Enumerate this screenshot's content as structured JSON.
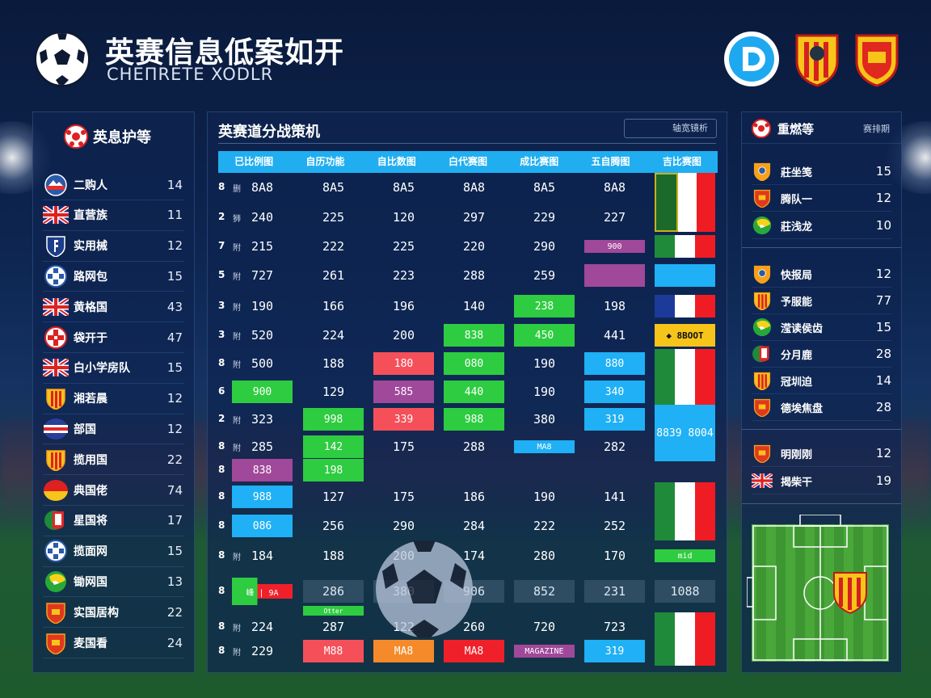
{
  "header": {
    "title": "英赛信息低案如开",
    "subtitle": "CHEΠRETE XODLR",
    "top_logos": [
      "d-logo-icon",
      "shield-crest-icon",
      "shield-crest-icon"
    ]
  },
  "colors": {
    "green": "#2ecc40",
    "red": "#f5505a",
    "purple": "#a0489a",
    "blue": "#1fb0f5",
    "orange": "#f58a2a",
    "scarlet": "#f0202a",
    "yellow": "#f7c41a",
    "header_blue": "#21aef0"
  },
  "left": {
    "title": "英息护等",
    "items": [
      {
        "name": "二购人",
        "value": "14",
        "icon": "mountain-badge"
      },
      {
        "name": "直营族",
        "value": "11",
        "icon": "uk-flag"
      },
      {
        "name": "实用械",
        "value": "12",
        "icon": "shield-blue"
      },
      {
        "name": "路网包",
        "value": "15",
        "icon": "ball-blue"
      },
      {
        "name": "黄格国",
        "value": "43",
        "icon": "uk-flag"
      },
      {
        "name": "袋开于",
        "value": "47",
        "icon": "ball-red"
      },
      {
        "name": "白小学房队",
        "value": "15",
        "icon": "uk-flag"
      },
      {
        "name": "湘若晨",
        "value": "12",
        "icon": "shield-stripes"
      },
      {
        "name": "部国",
        "value": "12",
        "icon": "stripes-circle"
      },
      {
        "name": "揽用国",
        "value": "22",
        "icon": "shield-stripes"
      },
      {
        "name": "典国佬",
        "value": "74",
        "icon": "germany-circle"
      },
      {
        "name": "星国将",
        "value": "17",
        "icon": "mexico-badge"
      },
      {
        "name": "揽面网",
        "value": "15",
        "icon": "ball-blue"
      },
      {
        "name": "锄网国",
        "value": "13",
        "icon": "green-circle"
      },
      {
        "name": "实国居构",
        "value": "22",
        "icon": "shield-red"
      },
      {
        "name": "麦国看",
        "value": "24",
        "icon": "shield-red"
      }
    ]
  },
  "center": {
    "title": "英赛道分战策机",
    "button": "轴宽镜析",
    "columns": [
      "已比例图",
      "自历功能",
      "自比数图",
      "白代赛图",
      "成比赛图",
      "五自腾图",
      "吉比赛图"
    ],
    "rows": [
      {
        "idx": "8",
        "sub": "删",
        "cells": [
          {
            "v": "8A8"
          },
          {
            "v": "8A5"
          },
          {
            "v": "8A5"
          },
          {
            "v": "8A8"
          },
          {
            "v": "8A5"
          },
          {
            "v": "8A8"
          },
          {
            "flag": "it",
            "badge": true,
            "span": 2
          }
        ]
      },
      {
        "idx": "2",
        "sub": "狮",
        "cells": [
          {
            "v": "240"
          },
          {
            "v": "225"
          },
          {
            "v": "120"
          },
          {
            "v": "297"
          },
          {
            "v": "229"
          },
          {
            "v": "227"
          },
          null
        ]
      },
      {
        "idx": "7",
        "sub": "附",
        "cells": [
          {
            "v": "215"
          },
          {
            "v": "222"
          },
          {
            "v": "225"
          },
          {
            "v": "220"
          },
          {
            "v": "290"
          },
          {
            "v": "900",
            "bg": "purple",
            "small": true
          },
          {
            "flag": "it"
          }
        ]
      },
      {
        "idx": "5",
        "sub": "附",
        "cells": [
          {
            "v": "727"
          },
          {
            "v": "261"
          },
          {
            "v": "223"
          },
          {
            "v": "288"
          },
          {
            "v": "259"
          },
          {
            "v": "",
            "bg": "purple"
          },
          {
            "v": "",
            "bg": "blue"
          }
        ]
      },
      {
        "idx": "3",
        "sub": "附",
        "cells": [
          {
            "v": "190"
          },
          {
            "v": "166"
          },
          {
            "v": "196"
          },
          {
            "v": "140"
          },
          {
            "v": "238",
            "bg": "green"
          },
          {
            "v": "198"
          },
          {
            "flag": "fr"
          }
        ]
      },
      {
        "idx": "3",
        "sub": "附",
        "cells": [
          {
            "v": "520"
          },
          {
            "v": "224"
          },
          {
            "v": "200"
          },
          {
            "v": "838",
            "bg": "green"
          },
          {
            "v": "450",
            "bg": "green"
          },
          {
            "v": "441"
          },
          {
            "v": "◆ 8BOOT",
            "bg": "yellow",
            "dark": true
          }
        ]
      },
      {
        "idx": "8",
        "sub": "附",
        "cells": [
          {
            "v": "500"
          },
          {
            "v": "188"
          },
          {
            "v": "180",
            "bg": "red"
          },
          {
            "v": "080",
            "bg": "green"
          },
          {
            "v": "190"
          },
          {
            "v": "880",
            "bg": "blue"
          },
          {
            "flag": "it",
            "span": 2
          }
        ]
      },
      {
        "idx": "6",
        "sub": "",
        "cells": [
          {
            "v": "900",
            "bg": "green"
          },
          {
            "v": "129"
          },
          {
            "v": "585",
            "bg": "purple"
          },
          {
            "v": "440",
            "bg": "green"
          },
          {
            "v": "190"
          },
          {
            "v": "340",
            "bg": "blue"
          },
          null
        ]
      },
      {
        "idx": "2",
        "sub": "附",
        "cells": [
          {
            "v": "323"
          },
          {
            "v": "998",
            "bg": "green"
          },
          {
            "v": "339",
            "bg": "red"
          },
          {
            "v": "988",
            "bg": "green"
          },
          {
            "v": "380"
          },
          {
            "v": "319",
            "bg": "blue"
          },
          {
            "v": "8839 8004",
            "bg": "blue",
            "span": 2
          }
        ]
      },
      {
        "idx": "8",
        "sub": "附",
        "cells": [
          {
            "v": "285"
          },
          {
            "v": "142",
            "bg": "green"
          },
          {
            "v": "175"
          },
          {
            "v": "288"
          },
          {
            "v": "MA8",
            "bg": "blue",
            "small": true
          },
          {
            "v": "282"
          },
          null
        ]
      },
      {
        "idx": "8",
        "sub": "",
        "cells": [
          {
            "v": "838",
            "bg": "purple"
          },
          {
            "v": "198",
            "bg": "green"
          },
          {
            "v": ""
          },
          {
            "v": ""
          },
          {
            "v": ""
          },
          {
            "v": ""
          },
          {
            "v": ""
          }
        ]
      },
      {
        "idx": "8",
        "sub": "",
        "cells": [
          {
            "v": "988",
            "bg": "blue"
          },
          {
            "v": "127"
          },
          {
            "v": "175"
          },
          {
            "v": "186"
          },
          {
            "v": "190"
          },
          {
            "v": "141"
          },
          {
            "flag": "it",
            "span": 2
          }
        ]
      },
      {
        "idx": "8",
        "sub": "",
        "cells": [
          {
            "v": "086",
            "bg": "blue"
          },
          {
            "v": "256"
          },
          {
            "v": "290"
          },
          {
            "v": "284"
          },
          {
            "v": "222"
          },
          {
            "v": "252"
          },
          null
        ]
      },
      {
        "idx": "8",
        "sub": "附",
        "cells": [
          {
            "v": "184"
          },
          {
            "v": "188"
          },
          {
            "v": "200"
          },
          {
            "v": "174"
          },
          {
            "v": "280"
          },
          {
            "v": "170"
          },
          {
            "v": "mid",
            "bg": "green",
            "small": true
          }
        ]
      },
      {
        "idx": "8",
        "sub": "",
        "cells": [
          {
            "v": "峰 | 9A",
            "bg": "split"
          },
          {
            "v": "286",
            "bg": "glass"
          },
          {
            "v": "380",
            "bg": "glass"
          },
          {
            "v": "906",
            "bg": "glass"
          },
          {
            "v": "852",
            "bg": "glass"
          },
          {
            "v": "231",
            "bg": "glass"
          },
          {
            "v": "1088",
            "bg": "glass"
          }
        ]
      },
      {
        "idx": "8",
        "sub": "附",
        "cells": [
          {
            "v": "224"
          },
          {
            "v": "287",
            "tag": "Otter"
          },
          {
            "v": "122"
          },
          {
            "v": "260"
          },
          {
            "v": "720"
          },
          {
            "v": "723"
          },
          {
            "flag": "it",
            "span": 2
          }
        ]
      },
      {
        "idx": "8",
        "sub": "附",
        "cells": [
          {
            "v": "229"
          },
          {
            "v": "M88",
            "bg": "red"
          },
          {
            "v": "MA8",
            "bg": "orange"
          },
          {
            "v": "MA8",
            "bg": "scarlet"
          },
          {
            "v": "MAGAZINE",
            "bg": "purple",
            "small": true
          },
          {
            "v": "319",
            "bg": "blue"
          },
          null
        ]
      }
    ]
  },
  "right": {
    "title": "重燃等",
    "link": "赛排期",
    "groups": [
      [
        {
          "name": "莊坐笺",
          "value": "15",
          "icon": "shield-orange"
        },
        {
          "name": "腾队一",
          "value": "12",
          "icon": "shield-red"
        },
        {
          "name": "莊浅龙",
          "value": "10",
          "icon": "green-circle"
        }
      ],
      [
        {
          "name": "快报局",
          "value": "12",
          "icon": "shield-orange"
        },
        {
          "name": "予服能",
          "value": "77",
          "icon": "shield-stripes"
        },
        {
          "name": "滢读侯齿",
          "value": "15",
          "icon": "green-circle"
        },
        {
          "name": "分月鹿",
          "value": "28",
          "icon": "mexico-badge"
        },
        {
          "name": "冠圳迫",
          "value": "14",
          "icon": "shield-stripes"
        },
        {
          "name": "德埃焦盘",
          "value": "28",
          "icon": "shield-red"
        }
      ],
      [
        {
          "name": "明刚刚",
          "value": "12",
          "icon": "shield-red"
        },
        {
          "name": "揭柴干",
          "value": "19",
          "icon": "uk-flag"
        }
      ]
    ]
  }
}
